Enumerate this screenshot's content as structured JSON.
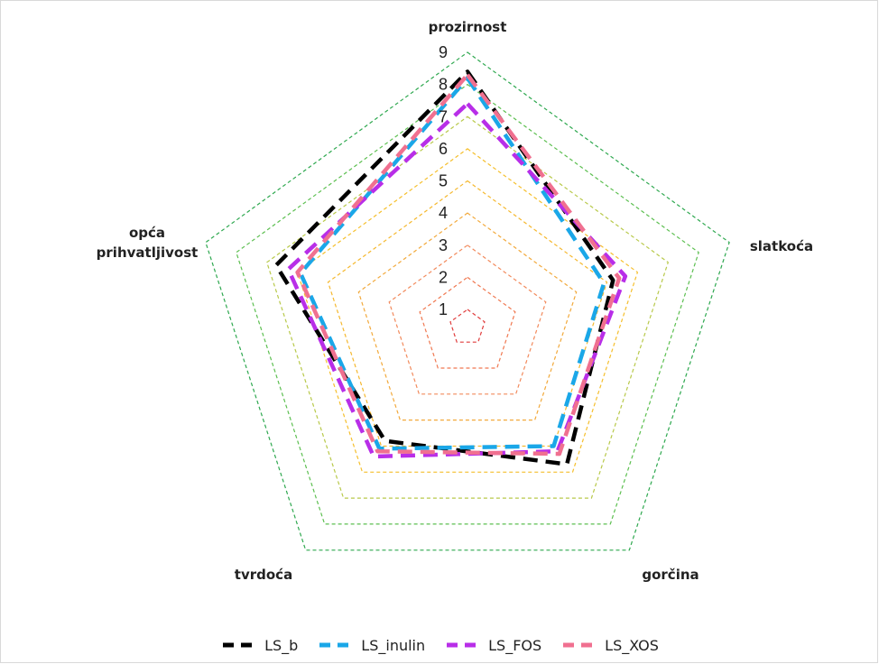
{
  "chart_data": {
    "type": "radar",
    "axes": [
      "prozirnost",
      "slatkoća",
      "gorčina",
      "tvrdoća",
      "opća prihvatljivost"
    ],
    "axis_label_lines": [
      [
        "prozirnost"
      ],
      [
        "slatkoća"
      ],
      [
        "gorčina"
      ],
      [
        "tvrdoća"
      ],
      [
        "opća",
        "prihvatljivost"
      ]
    ],
    "ticks": [
      "1",
      "2",
      "3",
      "4",
      "5",
      "6",
      "7",
      "8",
      "9"
    ],
    "rmin": 1,
    "rmax": 9,
    "grid_ring_colors": [
      "#e03c3c",
      "#f07850",
      "#f28a5c",
      "#f2a93b",
      "#f5b82e",
      "#f5bf2c",
      "#b8c94a",
      "#5cbf50",
      "#2ea84f"
    ],
    "series": [
      {
        "name": "LS_b",
        "color": "#000000",
        "values": [
          8.4,
          5.2,
          5.7,
          4.8,
          6.7
        ]
      },
      {
        "name": "LS_inulin",
        "color": "#1aa7e8",
        "values": [
          8.2,
          4.9,
          5.0,
          5.1,
          5.9
        ]
      },
      {
        "name": "LS_FOS",
        "color": "#b82ee8",
        "values": [
          7.4,
          5.6,
          5.2,
          5.4,
          6.3
        ]
      },
      {
        "name": "LS_XOS",
        "color": "#f07090",
        "values": [
          8.3,
          5.4,
          5.3,
          5.2,
          6.0
        ]
      }
    ],
    "legend_position": "bottom"
  }
}
